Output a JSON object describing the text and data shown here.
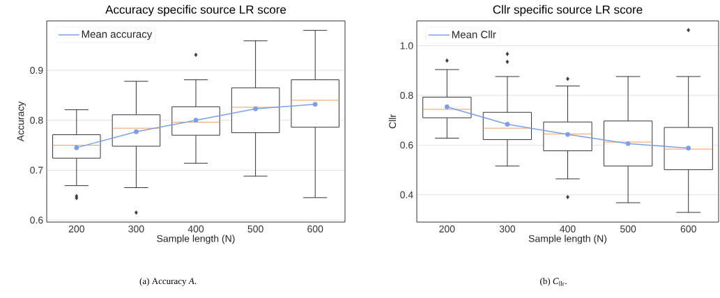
{
  "chart_data": [
    {
      "type": "box",
      "title": "Accuracy specific source LR score",
      "xlabel": "Sample length (N)",
      "ylabel": "Accuracy",
      "categories": [
        "200",
        "300",
        "400",
        "500",
        "600"
      ],
      "boxes": [
        {
          "low": 0.669,
          "q1": 0.724,
          "median": 0.75,
          "q3": 0.771,
          "high": 0.821,
          "outliers": [
            0.648,
            0.644
          ]
        },
        {
          "low": 0.665,
          "q1": 0.748,
          "median": 0.784,
          "q3": 0.811,
          "high": 0.878,
          "outliers": [
            0.615
          ]
        },
        {
          "low": 0.714,
          "q1": 0.77,
          "median": 0.796,
          "q3": 0.827,
          "high": 0.881,
          "outliers": [
            0.931
          ]
        },
        {
          "low": 0.688,
          "q1": 0.775,
          "median": 0.826,
          "q3": 0.865,
          "high": 0.959
        },
        {
          "low": 0.645,
          "q1": 0.786,
          "median": 0.84,
          "q3": 0.881,
          "high": 0.98
        }
      ],
      "series": [
        {
          "name": "Mean accuracy",
          "type": "line",
          "color": "#7b9fe8",
          "marker": "circle",
          "values": [
            0.745,
            0.777,
            0.8,
            0.823,
            0.832
          ]
        }
      ],
      "ylim": [
        0.596,
        0.999
      ],
      "yticks": [
        0.6,
        0.7,
        0.8,
        0.9
      ],
      "grid": "y",
      "legend": "top left",
      "annotations": [
        "(a) Accuracy *A*."
      ]
    },
    {
      "type": "box",
      "title": "Cllr specific source LR score",
      "xlabel": "Sample length (N)",
      "ylabel": "Cllr",
      "categories": [
        "200",
        "300",
        "400",
        "500",
        "600"
      ],
      "boxes": [
        {
          "low": 0.628,
          "q1": 0.71,
          "median": 0.744,
          "q3": 0.793,
          "high": 0.904,
          "outliers": [
            0.94
          ]
        },
        {
          "low": 0.516,
          "q1": 0.622,
          "median": 0.668,
          "q3": 0.732,
          "high": 0.876,
          "outliers": [
            0.967,
            0.935
          ]
        },
        {
          "low": 0.464,
          "q1": 0.577,
          "median": 0.645,
          "q3": 0.693,
          "high": 0.838,
          "outliers": [
            0.867,
            0.391
          ]
        },
        {
          "low": 0.368,
          "q1": 0.516,
          "median": 0.612,
          "q3": 0.697,
          "high": 0.876
        },
        {
          "low": 0.329,
          "q1": 0.501,
          "median": 0.584,
          "q3": 0.671,
          "high": 0.876,
          "outliers": [
            1.063
          ]
        }
      ],
      "series": [
        {
          "name": "Mean Cllr",
          "type": "line",
          "color": "#7b9fe8",
          "marker": "circle",
          "values": [
            0.754,
            0.684,
            0.643,
            0.606,
            0.588
          ]
        }
      ],
      "ylim": [
        0.29,
        1.1
      ],
      "yticks": [
        0.4,
        0.6,
        0.8,
        {
          "value": 1.0,
          "label": "1.0"
        }
      ],
      "grid": "y",
      "legend": "top left",
      "annotations": [
        "(b) *C*$_{llr}$."
      ]
    }
  ]
}
